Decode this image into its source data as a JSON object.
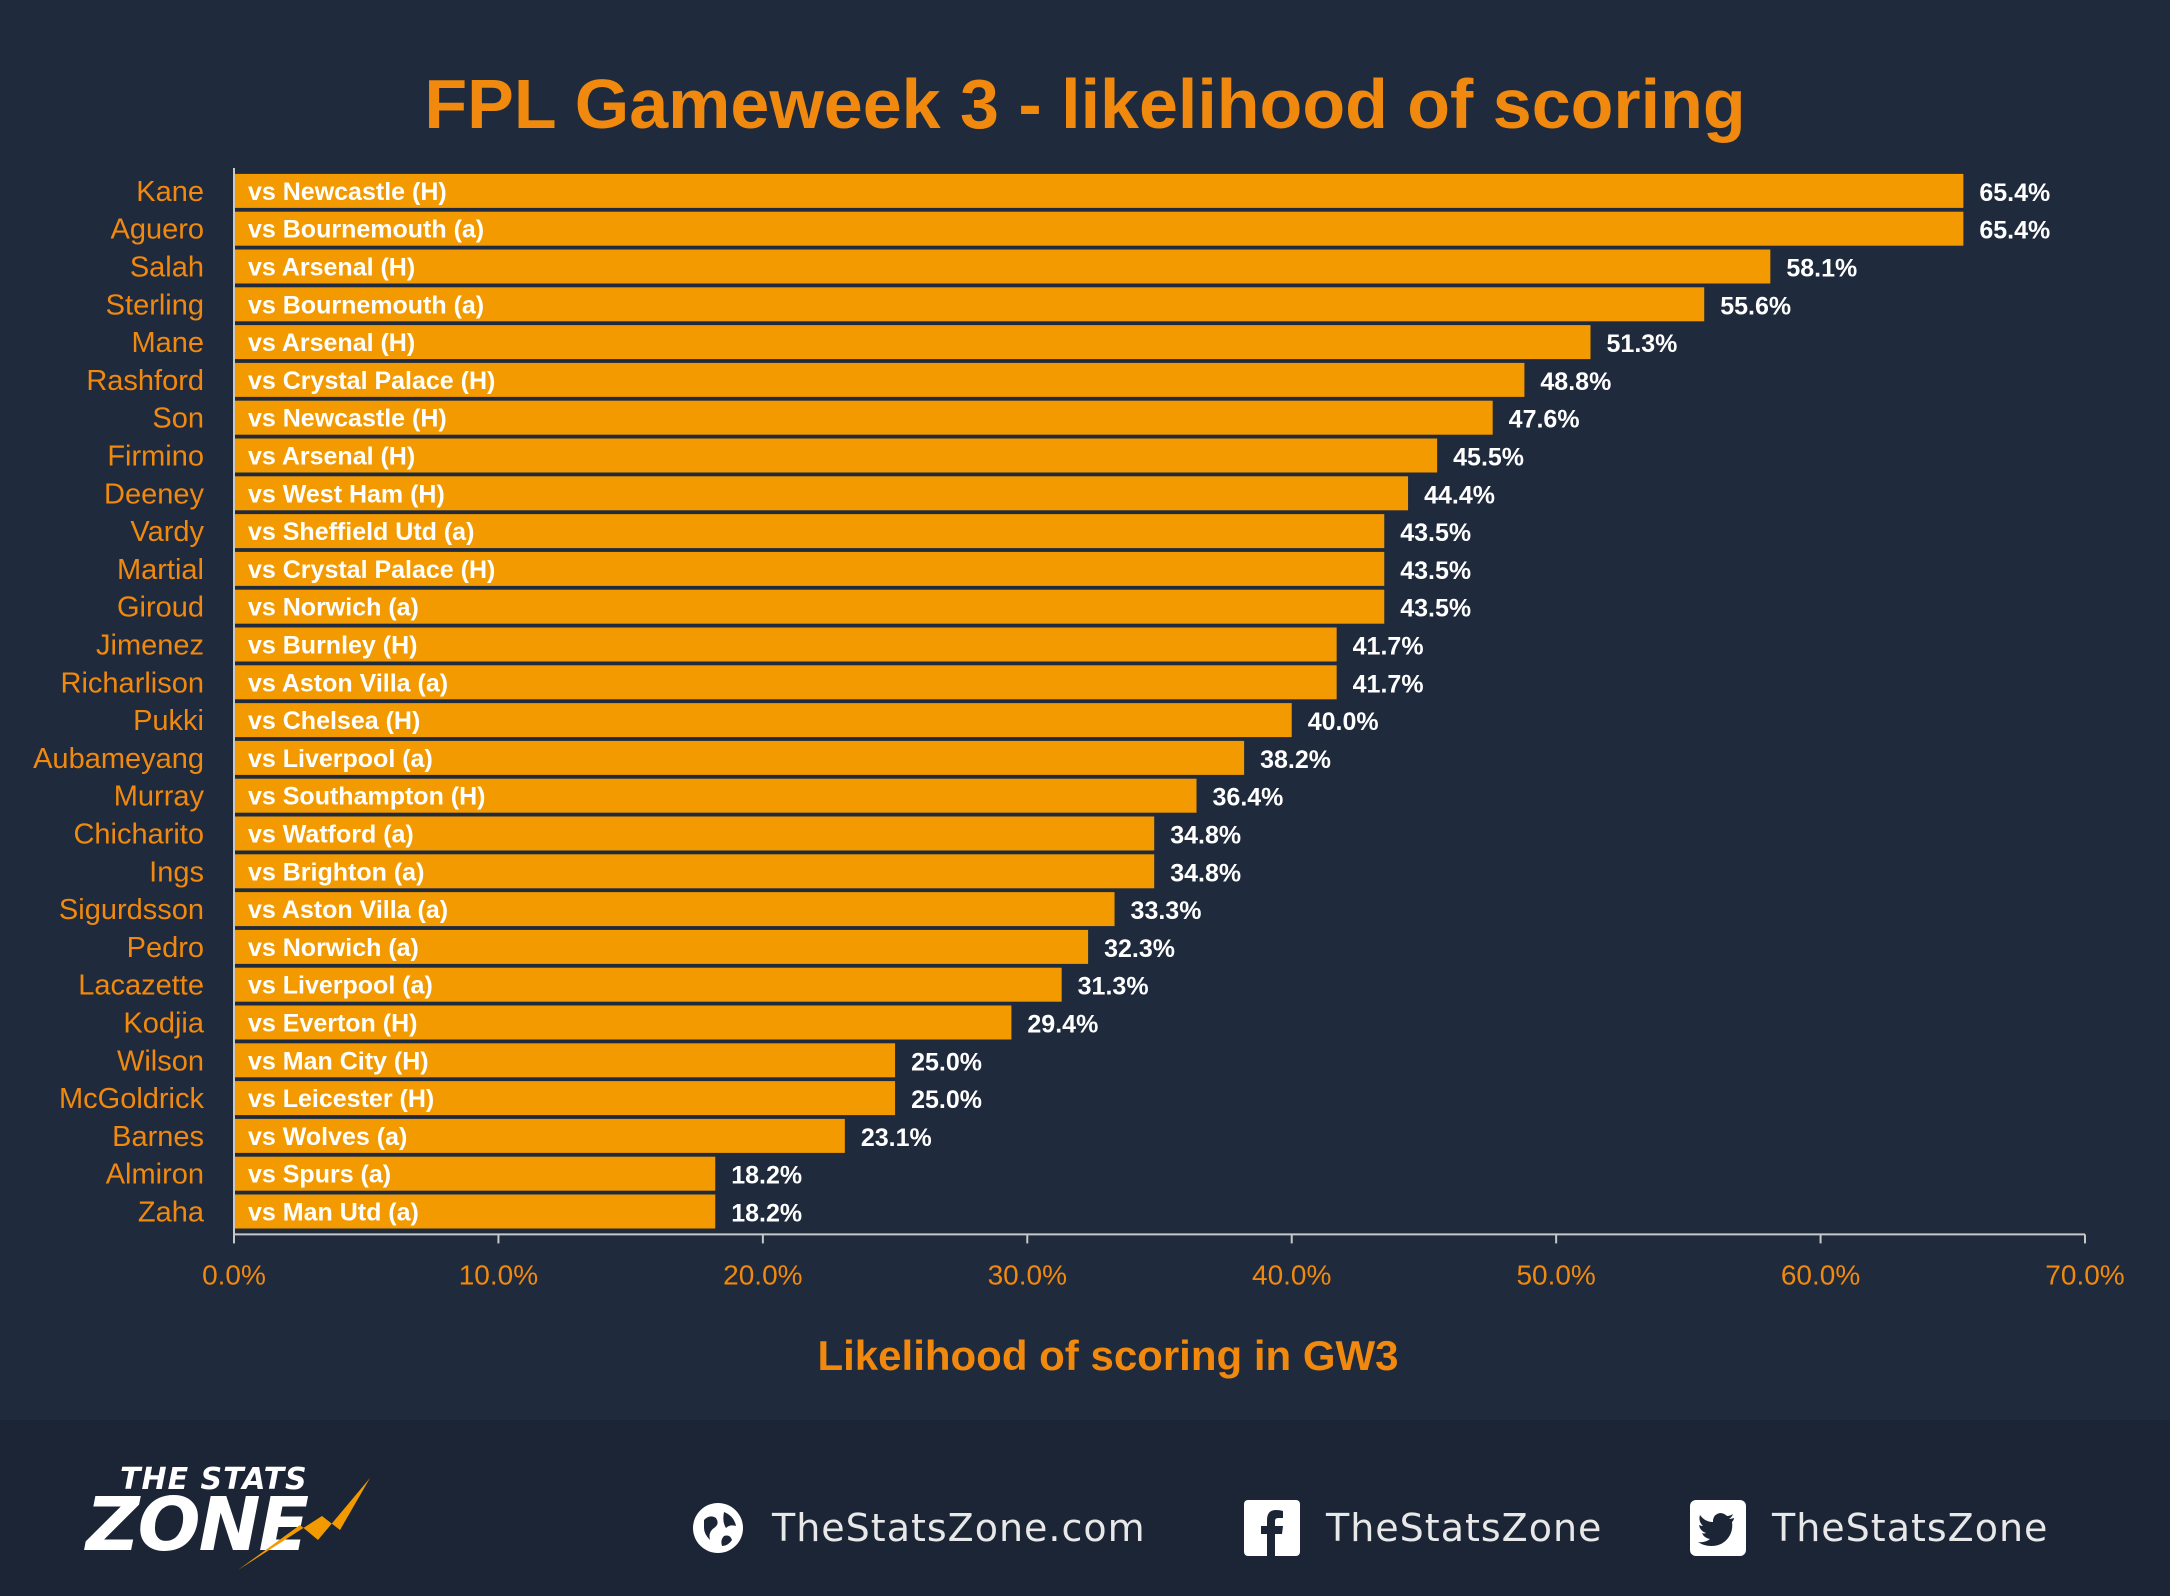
{
  "chart_data": {
    "type": "bar",
    "orientation": "horizontal",
    "title": "FPL Gameweek 3 - likelihood of scoring",
    "xlabel": "Likelihood of scoring in GW3",
    "ylabel": "",
    "xlim": [
      0,
      70
    ],
    "xticks": [
      "0.0%",
      "10.0%",
      "20.0%",
      "30.0%",
      "40.0%",
      "50.0%",
      "60.0%",
      "70.0%"
    ],
    "bar_color": "#f39a00",
    "text_accent": "#f0890e",
    "categories": [
      "Kane",
      "Aguero",
      "Salah",
      "Sterling",
      "Mane",
      "Rashford",
      "Son",
      "Firmino",
      "Deeney",
      "Vardy",
      "Martial",
      "Giroud",
      "Jimenez",
      "Richarlison",
      "Pukki",
      "Aubameyang",
      "Murray",
      "Chicharito",
      "Ings",
      "Sigurdsson",
      "Pedro",
      "Lacazette",
      "Kodjia",
      "Wilson",
      "McGoldrick",
      "Barnes",
      "Almiron",
      "Zaha"
    ],
    "fixtures": [
      "vs Newcastle (H)",
      "vs Bournemouth (a)",
      "vs Arsenal (H)",
      "vs Bournemouth (a)",
      "vs Arsenal (H)",
      "vs Crystal Palace (H)",
      "vs Newcastle (H)",
      "vs Arsenal (H)",
      "vs West Ham (H)",
      "vs Sheffield Utd (a)",
      "vs Crystal Palace (H)",
      "vs Norwich (a)",
      "vs Burnley (H)",
      "vs Aston Villa (a)",
      "vs Chelsea (H)",
      "vs Liverpool (a)",
      "vs Southampton (H)",
      "vs Watford (a)",
      "vs Brighton (a)",
      "vs Aston Villa (a)",
      "vs Norwich (a)",
      "vs Liverpool (a)",
      "vs Everton (H)",
      "vs Man City (H)",
      "vs Leicester (H)",
      "vs Wolves (a)",
      "vs Spurs (a)",
      "vs Man Utd (a)"
    ],
    "values": [
      65.4,
      65.4,
      58.1,
      55.6,
      51.3,
      48.8,
      47.6,
      45.5,
      44.4,
      43.5,
      43.5,
      43.5,
      41.7,
      41.7,
      40.0,
      38.2,
      36.4,
      34.8,
      34.8,
      33.3,
      32.3,
      31.3,
      29.4,
      25.0,
      25.0,
      23.1,
      18.2,
      18.2
    ],
    "value_labels": [
      "65.4%",
      "65.4%",
      "58.1%",
      "55.6%",
      "51.3%",
      "48.8%",
      "47.6%",
      "45.5%",
      "44.4%",
      "43.5%",
      "43.5%",
      "43.5%",
      "41.7%",
      "41.7%",
      "40.0%",
      "38.2%",
      "36.4%",
      "34.8%",
      "34.8%",
      "33.3%",
      "32.3%",
      "31.3%",
      "29.4%",
      "25.0%",
      "25.0%",
      "23.1%",
      "18.2%",
      "18.2%"
    ]
  },
  "footer": {
    "logo_top": "THE STATS",
    "logo_main": "ZONE",
    "website": "TheStatsZone.com",
    "facebook": "TheStatsZone",
    "twitter": "TheStatsZone",
    "icons": [
      "globe-icon",
      "facebook-icon",
      "twitter-icon"
    ]
  }
}
